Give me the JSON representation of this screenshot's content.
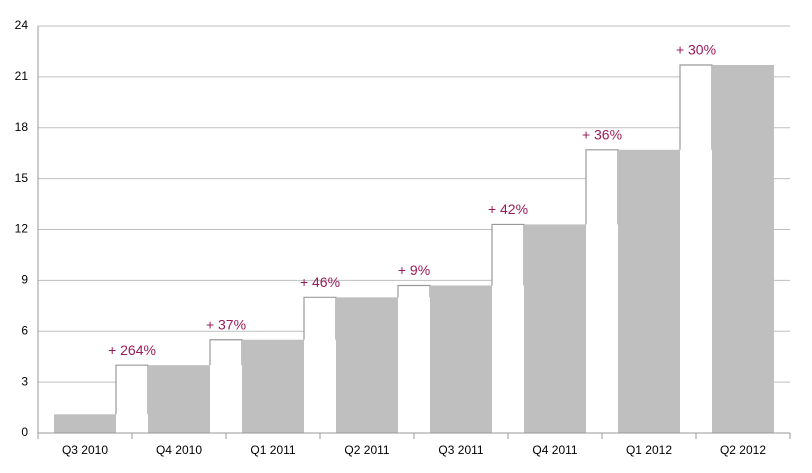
{
  "chart_data": {
    "type": "bar",
    "categories": [
      "Q3 2010",
      "Q4 2010",
      "Q1 2011",
      "Q2 2011",
      "Q3 2011",
      "Q4 2011",
      "Q1 2012",
      "Q2 2012"
    ],
    "values": [
      1.1,
      4.0,
      5.5,
      8.0,
      8.7,
      12.3,
      16.7,
      21.7
    ],
    "color": "#bfbfbf",
    "annotations": [
      null,
      "+ 264%",
      "+ 37%",
      "+ 46%",
      "+ 9%",
      "+ 42%",
      "+ 36%",
      "+ 30%"
    ],
    "ylim": [
      0,
      24
    ],
    "yticks": [
      0,
      3,
      6,
      9,
      12,
      15,
      18,
      21,
      24
    ],
    "grid": true
  }
}
